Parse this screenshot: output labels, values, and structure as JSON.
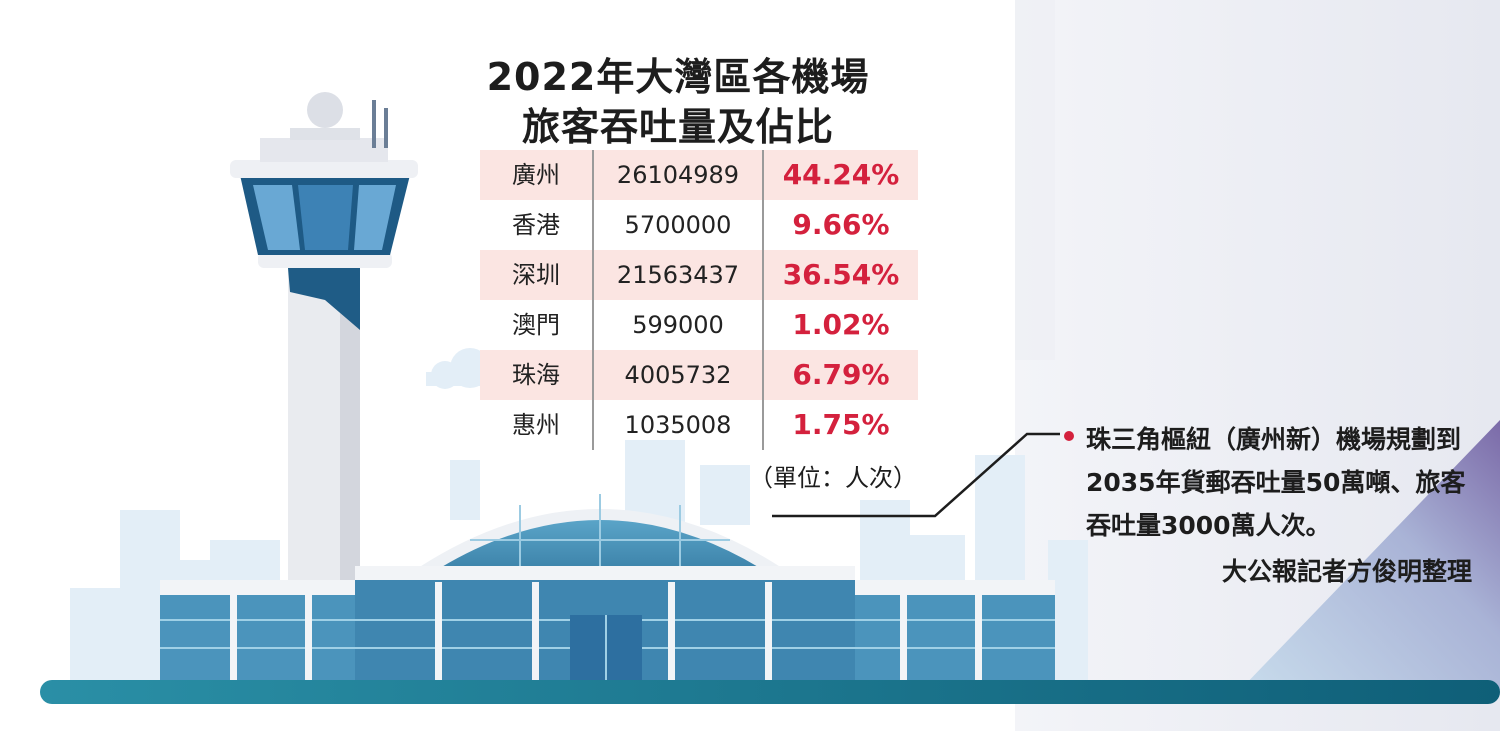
{
  "title": {
    "line1": "2022年大灣區各機場",
    "line2": "旅客吞吐量及佔比"
  },
  "chart_data": {
    "type": "table",
    "title": "2022年大灣區各機場旅客吞吐量及佔比",
    "unit": "（單位：人次）",
    "rows": [
      {
        "airport": "廣州",
        "passengers": "26104989",
        "share": "44.24%"
      },
      {
        "airport": "香港",
        "passengers": "5700000",
        "share": "9.66%"
      },
      {
        "airport": "深圳",
        "passengers": "21563437",
        "share": "36.54%"
      },
      {
        "airport": "澳門",
        "passengers": "599000",
        "share": "1.02%"
      },
      {
        "airport": "珠海",
        "passengers": "4005732",
        "share": "6.79%"
      },
      {
        "airport": "惠州",
        "passengers": "1035008",
        "share": "1.75%"
      }
    ]
  },
  "note": "珠三角樞紐（廣州新）機場規劃到2035年貨郵吞吐量50萬噸、旅客吞吐量3000萬人次。",
  "credit": "大公報記者方俊明整理",
  "colors": {
    "band": "#fbe5e2",
    "accent_red": "#d4213d",
    "terminal_blue": "#3f86b0",
    "ground": "#146f86",
    "sky": "#e3eef7"
  }
}
